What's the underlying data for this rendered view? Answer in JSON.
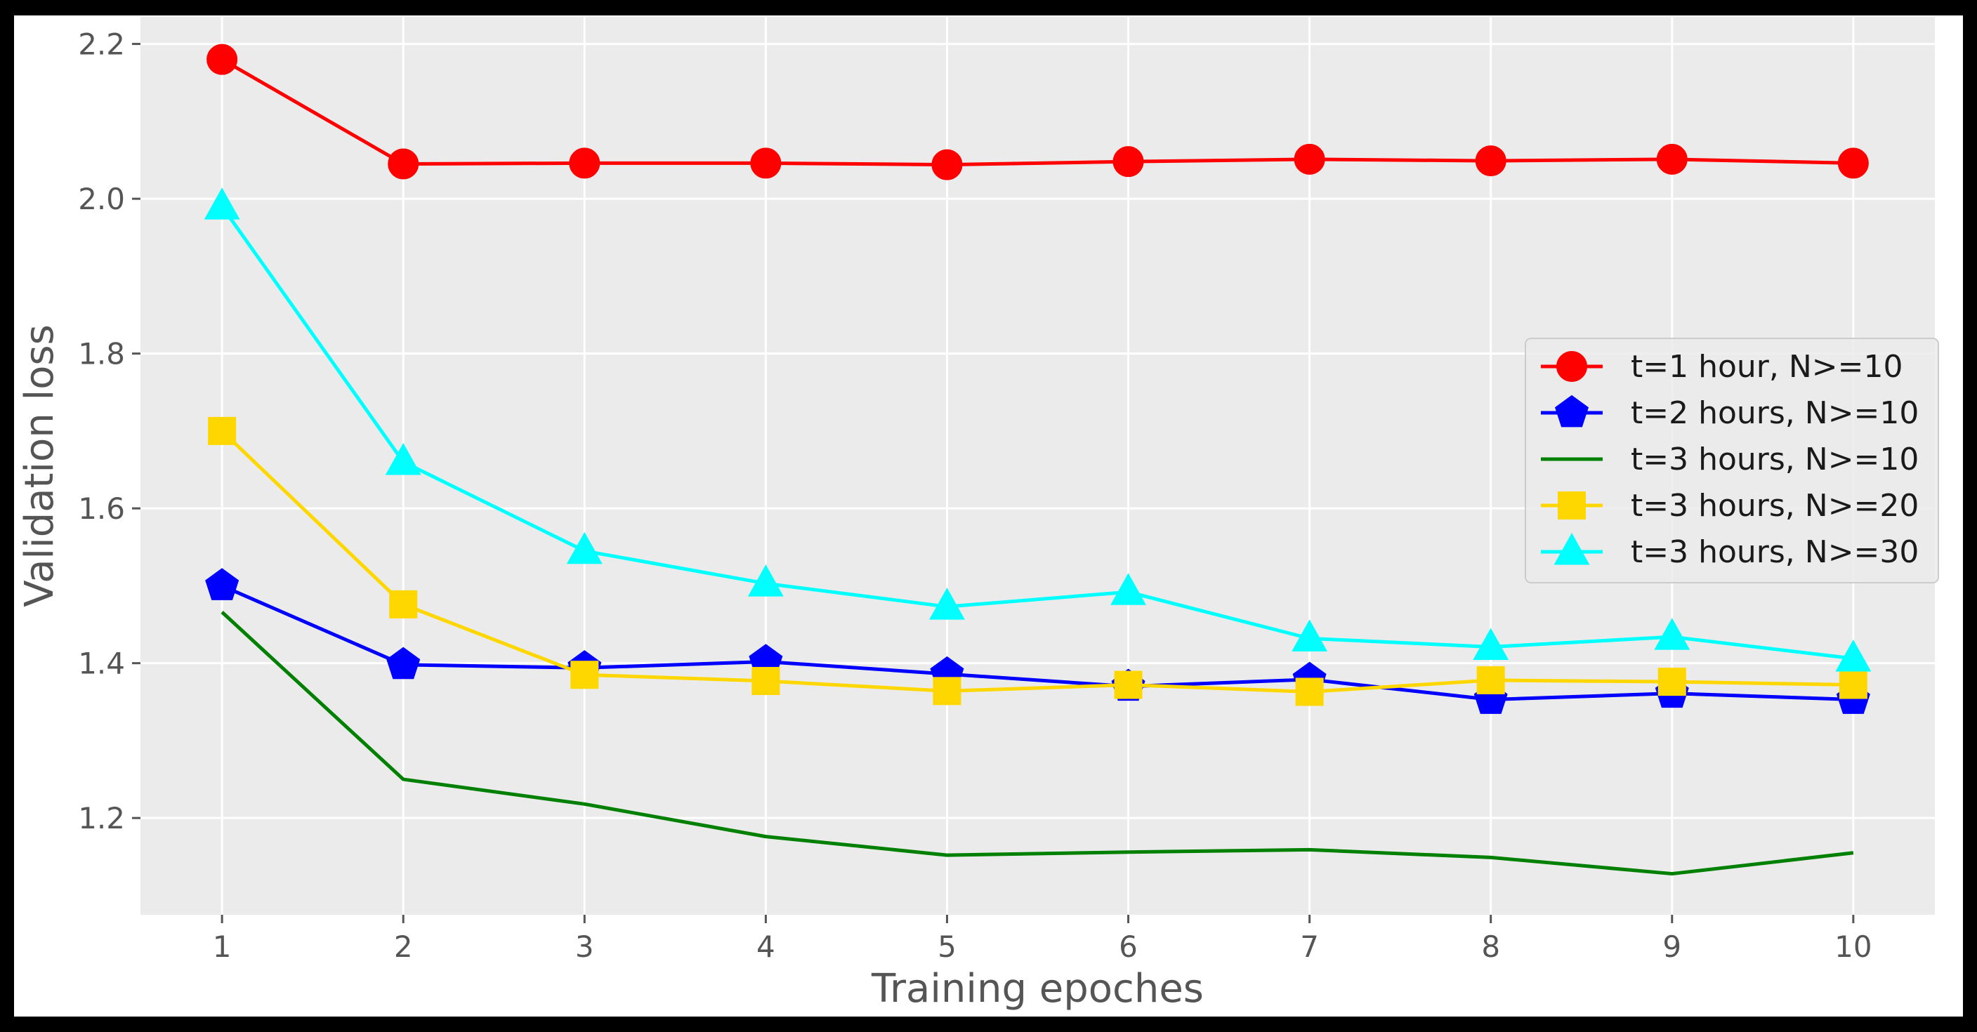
{
  "chart_data": {
    "type": "line",
    "title": "",
    "xlabel": "Training epoches",
    "ylabel": "Validation loss",
    "x": [
      1,
      2,
      3,
      4,
      5,
      6,
      7,
      8,
      9,
      10
    ],
    "x_ticks": [
      "1",
      "2",
      "3",
      "4",
      "5",
      "6",
      "7",
      "8",
      "9",
      "10"
    ],
    "y_ticks": [
      "1.2",
      "1.4",
      "1.6",
      "1.8",
      "2.0",
      "2.2"
    ],
    "xlim": [
      0.55,
      10.45
    ],
    "ylim": [
      1.075,
      2.235
    ],
    "grid": true,
    "legend_position": "center-right",
    "series": [
      {
        "name": "t=1 hour, N>=10",
        "color": "#ff0000",
        "marker": "circle",
        "values": [
          2.18,
          2.045,
          2.046,
          2.046,
          2.044,
          2.048,
          2.051,
          2.049,
          2.051,
          2.046
        ]
      },
      {
        "name": "t=2 hours, N>=10",
        "color": "#0000ff",
        "marker": "pentagon",
        "values": [
          1.5,
          1.398,
          1.394,
          1.402,
          1.386,
          1.37,
          1.379,
          1.353,
          1.361,
          1.353
        ]
      },
      {
        "name": "t=3 hours, N>=10",
        "color": "#008000",
        "marker": "none",
        "values": [
          1.466,
          1.25,
          1.218,
          1.176,
          1.152,
          1.156,
          1.159,
          1.149,
          1.128,
          1.155
        ]
      },
      {
        "name": "t=3 hours, N>=20",
        "color": "#ffd700",
        "marker": "square",
        "values": [
          1.7,
          1.476,
          1.385,
          1.377,
          1.364,
          1.372,
          1.363,
          1.378,
          1.376,
          1.372
        ]
      },
      {
        "name": "t=3 hours, N>=30",
        "color": "#00ffff",
        "marker": "triangle",
        "values": [
          1.99,
          1.66,
          1.545,
          1.503,
          1.473,
          1.492,
          1.432,
          1.421,
          1.434,
          1.406
        ]
      }
    ]
  }
}
